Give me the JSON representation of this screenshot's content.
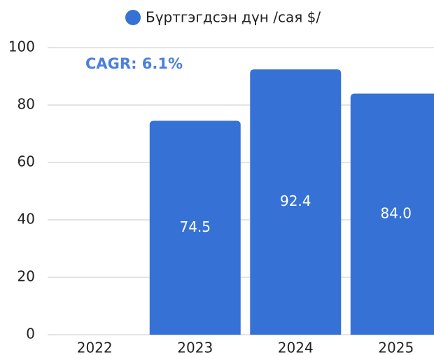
{
  "chart_data": {
    "type": "bar",
    "series": [
      {
        "name": "Бүртгэгдсэн дүн /сая $/",
        "color": "#3672d6",
        "values": [
          null,
          74.5,
          92.4,
          84.0
        ],
        "value_labels": [
          null,
          "74.5",
          "92.4",
          "84.0"
        ]
      }
    ],
    "categories": [
      "2022",
      "2023",
      "2024",
      "2025"
    ],
    "annotations": [
      "CAGR: 6.1%"
    ],
    "ylim": [
      0,
      100
    ],
    "yticks": [
      0,
      20,
      40,
      60,
      80,
      100
    ],
    "grid": true,
    "legend": "top"
  }
}
